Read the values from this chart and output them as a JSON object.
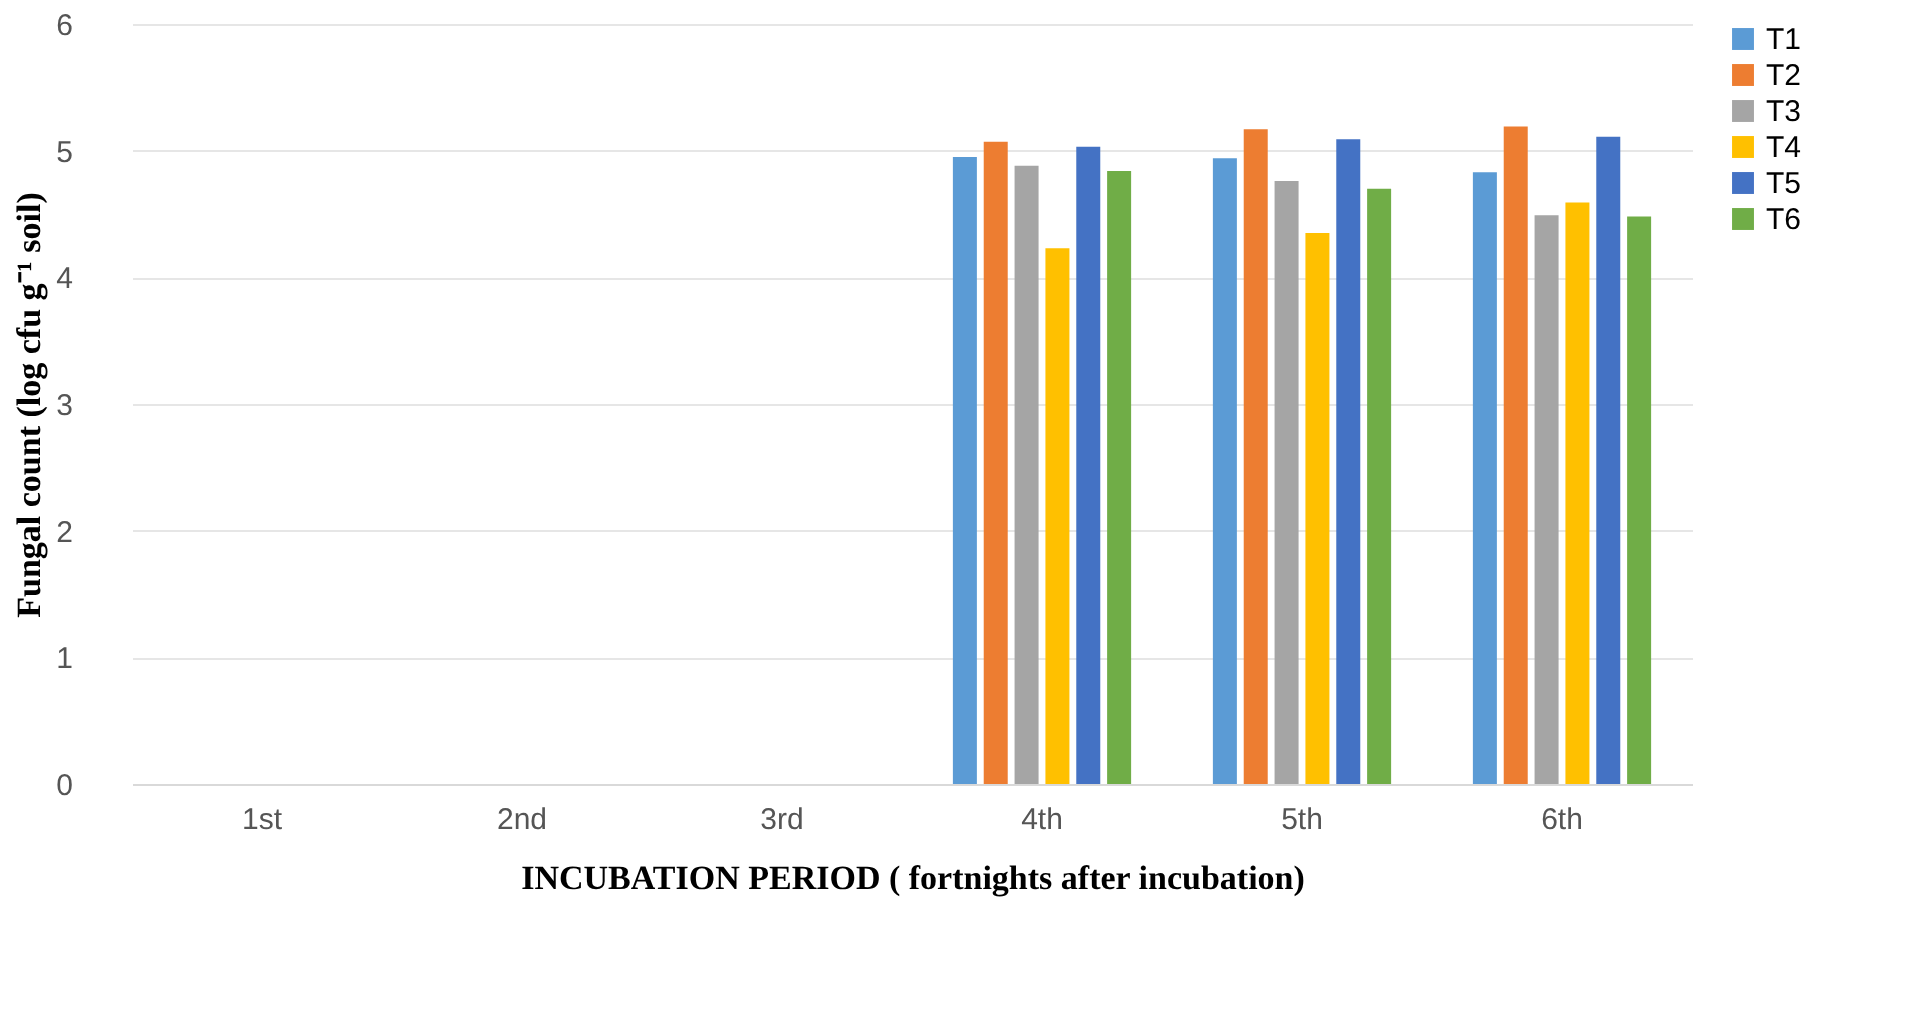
{
  "chart_data": {
    "type": "bar",
    "xlabel": "INCUBATION PERIOD ( fortnights after incubation)",
    "ylabel": "Fungal count (log cfu g⁻¹ soil)",
    "categories": [
      "1st",
      "2nd",
      "3rd",
      "4th",
      "5th",
      "6th"
    ],
    "series": [
      {
        "name": "T1",
        "color": "#5b9bd5",
        "values": [
          null,
          null,
          null,
          4.95,
          4.94,
          4.83
        ]
      },
      {
        "name": "T2",
        "color": "#ed7d31",
        "values": [
          null,
          null,
          null,
          5.07,
          5.17,
          5.19
        ]
      },
      {
        "name": "T3",
        "color": "#a5a5a5",
        "values": [
          null,
          null,
          null,
          4.88,
          4.76,
          4.49
        ]
      },
      {
        "name": "T4",
        "color": "#ffc000",
        "values": [
          null,
          null,
          null,
          4.23,
          4.35,
          4.59
        ]
      },
      {
        "name": "T5",
        "color": "#4472c4",
        "values": [
          null,
          null,
          null,
          5.03,
          5.09,
          5.11
        ]
      },
      {
        "name": "T6",
        "color": "#70ad47",
        "values": [
          null,
          null,
          null,
          4.84,
          4.7,
          4.48
        ]
      }
    ],
    "ylim": [
      0,
      6
    ],
    "yticks": [
      0,
      1,
      2,
      3,
      4,
      5,
      6
    ],
    "grid": "y",
    "legend": "right"
  }
}
